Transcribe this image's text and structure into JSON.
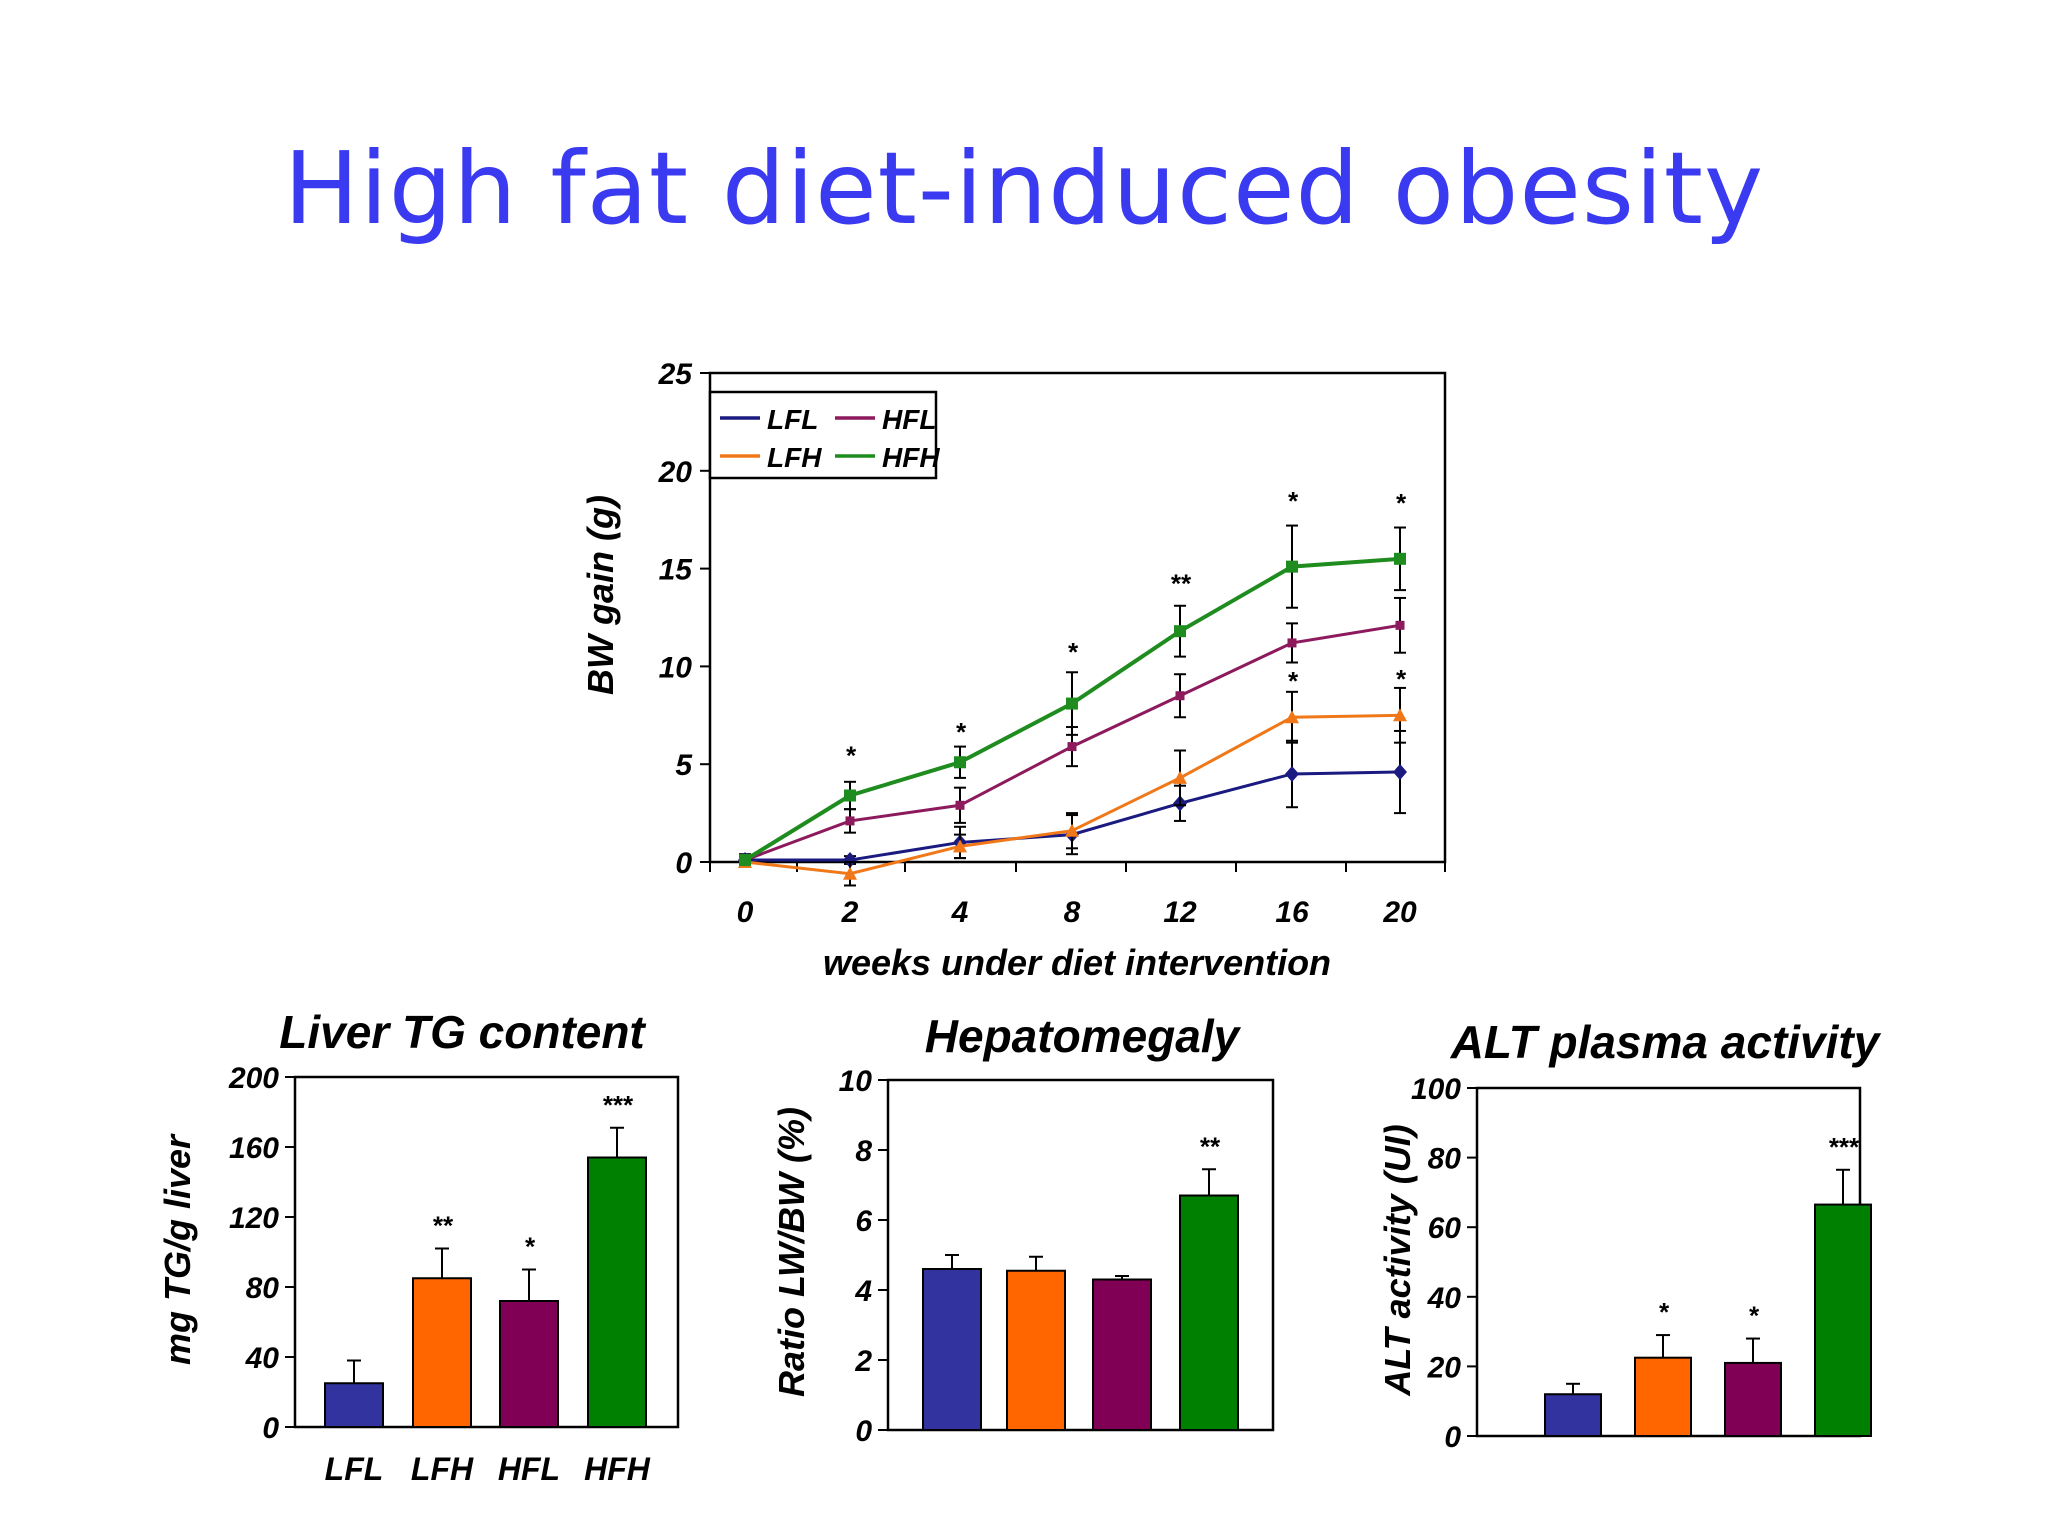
{
  "slide": {
    "title": "High fat diet-induced obesity"
  },
  "chart_data": [
    {
      "type": "line",
      "xlabel": "weeks under diet intervention",
      "ylabel": "BW gain (g)",
      "ylim": [
        0,
        25
      ],
      "yticks": [
        "0",
        "5",
        "10",
        "15",
        "20",
        "25"
      ],
      "categories": [
        "0",
        "2",
        "4",
        "8",
        "12",
        "16",
        "20"
      ],
      "legend_position": "top-left",
      "series": [
        {
          "name": "LFL",
          "color": "#1a1a80",
          "marker": "diamond",
          "values": [
            0.1,
            0.1,
            1.0,
            1.4,
            3.0,
            4.5,
            4.6
          ],
          "errors": [
            0.3,
            0.2,
            0.8,
            1.0,
            0.9,
            1.7,
            2.1
          ]
        },
        {
          "name": "LFH",
          "color": "#f07818",
          "marker": "triangle",
          "values": [
            0.0,
            -0.6,
            0.8,
            1.6,
            4.3,
            7.4,
            7.5
          ],
          "errors": [
            0.2,
            0.6,
            0.6,
            0.9,
            1.4,
            1.3,
            1.4
          ]
        },
        {
          "name": "HFL",
          "color": "#8c1a5c",
          "marker": "square",
          "values": [
            0.1,
            2.1,
            2.9,
            5.9,
            8.5,
            11.2,
            12.1
          ],
          "errors": [
            0.2,
            0.6,
            0.9,
            1.0,
            1.1,
            1.0,
            1.4
          ]
        },
        {
          "name": "HFH",
          "color": "#1e8c1e",
          "marker": "square",
          "values": [
            0.1,
            3.4,
            5.1,
            8.1,
            11.8,
            15.1,
            15.5
          ],
          "errors": [
            0.2,
            0.7,
            0.8,
            1.6,
            1.3,
            2.1,
            1.6
          ]
        }
      ],
      "annotations": [
        {
          "x": "2",
          "y": 5.5,
          "text": "*"
        },
        {
          "x": "4",
          "y": 6.7,
          "text": "*"
        },
        {
          "x": "8",
          "y": 10.8,
          "text": "*"
        },
        {
          "x": "12",
          "y": 14.3,
          "text": "**"
        },
        {
          "x": "16",
          "y": 18.5,
          "text": "*"
        },
        {
          "x": "20",
          "y": 18.4,
          "text": "*"
        },
        {
          "x": "16",
          "y": 9.3,
          "text": "*"
        },
        {
          "x": "20",
          "y": 9.4,
          "text": "*"
        }
      ]
    },
    {
      "type": "bar",
      "title": "Liver TG content",
      "ylabel": "mg TG/g liver",
      "ylim": [
        0,
        200
      ],
      "yticks": [
        "0",
        "40",
        "80",
        "120",
        "160",
        "200"
      ],
      "categories": [
        "LFL",
        "LFH",
        "HFL",
        "HFH"
      ],
      "show_categories": true,
      "colors": [
        "#3333a0",
        "#ff6600",
        "#800055",
        "#008000"
      ],
      "values": [
        25,
        85,
        72,
        154
      ],
      "errors": [
        13,
        17,
        18,
        17
      ],
      "significance": [
        "",
        "**",
        "*",
        "***"
      ]
    },
    {
      "type": "bar",
      "title": "Hepatomegaly",
      "ylabel": "Ratio LW/BW (%)",
      "ylim": [
        0,
        10
      ],
      "yticks": [
        "0",
        "2",
        "4",
        "6",
        "8",
        "10"
      ],
      "categories": [
        "LFL",
        "LFH",
        "HFL",
        "HFH"
      ],
      "show_categories": false,
      "colors": [
        "#3333a0",
        "#ff6600",
        "#800055",
        "#008000"
      ],
      "values": [
        4.6,
        4.55,
        4.3,
        6.7
      ],
      "errors": [
        0.4,
        0.4,
        0.1,
        0.75
      ],
      "significance": [
        "",
        "",
        "",
        "**"
      ]
    },
    {
      "type": "bar",
      "title": "ALT plasma activity",
      "ylabel": "ALT activity (UI)",
      "ylim": [
        0,
        100
      ],
      "yticks": [
        "0",
        "20",
        "40",
        "60",
        "80",
        "100"
      ],
      "categories": [
        "LFL",
        "LFH",
        "HFL",
        "HFH"
      ],
      "show_categories": false,
      "colors": [
        "#3333a0",
        "#ff6600",
        "#800055",
        "#008000"
      ],
      "values": [
        12,
        22.5,
        21,
        66.5
      ],
      "errors": [
        3,
        6.5,
        7,
        10
      ],
      "significance": [
        "",
        "*",
        "*",
        "***"
      ]
    }
  ]
}
